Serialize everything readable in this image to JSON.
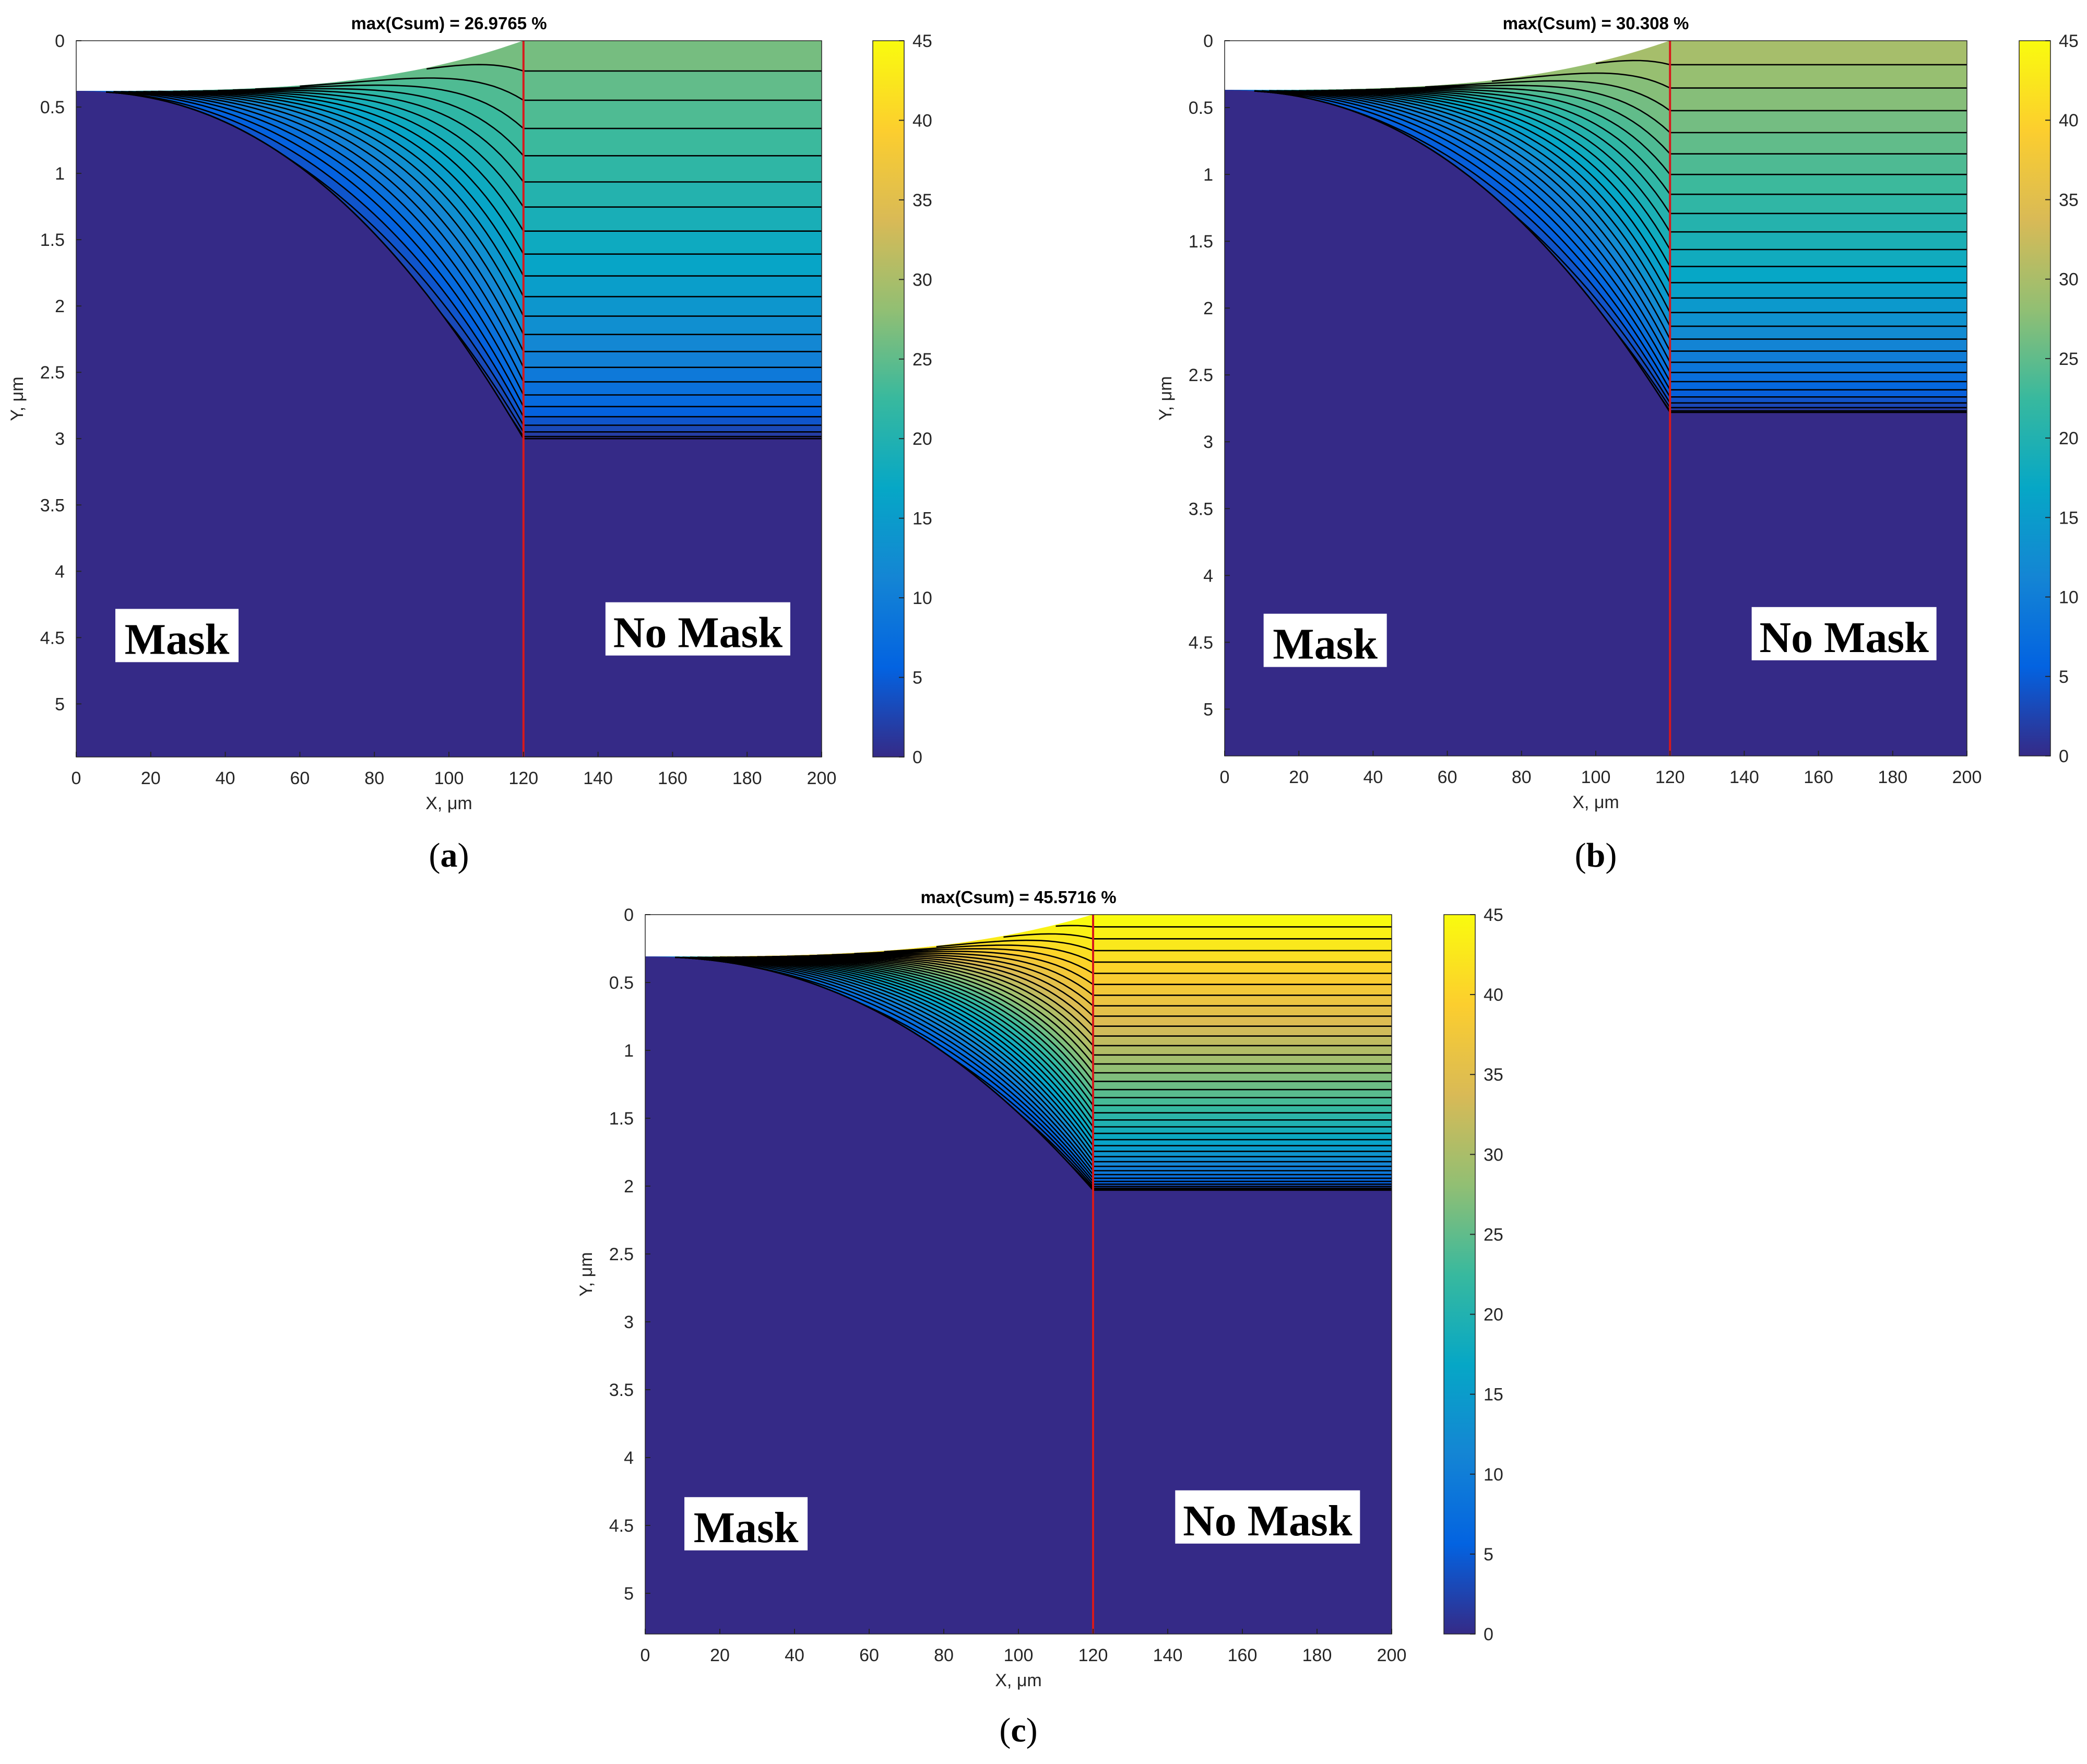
{
  "chart_data": [
    {
      "panel": "a",
      "type": "heatmap",
      "title": "max(Csum) = 26.9765 %",
      "max_value": 26.9765,
      "xlabel": "X, μm",
      "ylabel": "Y, μm",
      "xlim": [
        0,
        200
      ],
      "ylim": [
        0,
        5.4
      ],
      "xticks": [
        0,
        20,
        40,
        60,
        80,
        100,
        120,
        140,
        160,
        180,
        200
      ],
      "yticks": [
        0,
        0.5,
        1,
        1.5,
        2,
        2.5,
        3,
        3.5,
        4,
        4.5,
        5
      ],
      "ytick_labels": [
        "0",
        "0.5",
        "1",
        "1.5",
        "2",
        "2.5",
        "3",
        "3.5",
        "4",
        "4.5",
        "5"
      ],
      "colorbar": {
        "range": [
          0,
          45
        ],
        "ticks": [
          0,
          5,
          10,
          15,
          20,
          25,
          30,
          35,
          40,
          45
        ]
      },
      "mask_boundary_x": 120,
      "surface_depth_mask": 0.38,
      "diffusion_depth": 3.0,
      "contour_count": 22,
      "region_labels": {
        "left": "Mask",
        "right": "No Mask"
      },
      "caption": {
        "prefix": "(",
        "letter": "a",
        "suffix": ")"
      }
    },
    {
      "panel": "b",
      "type": "heatmap",
      "title": "max(Csum) = 30.308 %",
      "max_value": 30.308,
      "xlabel": "X, μm",
      "ylabel": "Y, μm",
      "xlim": [
        0,
        200
      ],
      "ylim": [
        0,
        5.35
      ],
      "xticks": [
        0,
        20,
        40,
        60,
        80,
        100,
        120,
        140,
        160,
        180,
        200
      ],
      "yticks": [
        0,
        0.5,
        1,
        1.5,
        2,
        2.5,
        3,
        3.5,
        4,
        4.5,
        5
      ],
      "ytick_labels": [
        "0",
        "0.5",
        "1",
        "1.5",
        "2",
        "2.5",
        "3",
        "3.5",
        "4",
        "4.5",
        "5"
      ],
      "colorbar": {
        "range": [
          0,
          45
        ],
        "ticks": [
          0,
          5,
          10,
          15,
          20,
          25,
          30,
          35,
          40,
          45
        ]
      },
      "mask_boundary_x": 120,
      "surface_depth_mask": 0.37,
      "diffusion_depth": 2.78,
      "contour_count": 26,
      "region_labels": {
        "left": "Mask",
        "right": "No Mask"
      },
      "caption": {
        "prefix": "(",
        "letter": "b",
        "suffix": ")"
      }
    },
    {
      "panel": "c",
      "type": "heatmap",
      "title": "max(Csum) = 45.5716 %",
      "max_value": 45.5716,
      "xlabel": "X, μm",
      "ylabel": "Y, μm",
      "xlim": [
        0,
        200
      ],
      "ylim": [
        0,
        5.3
      ],
      "xticks": [
        0,
        20,
        40,
        60,
        80,
        100,
        120,
        140,
        160,
        180,
        200
      ],
      "yticks": [
        0,
        0.5,
        1,
        1.5,
        2,
        2.5,
        3,
        3.5,
        4,
        4.5,
        5
      ],
      "ytick_labels": [
        "0",
        "0.5",
        "1",
        "1.5",
        "2",
        "2.5",
        "3",
        "3.5",
        "4",
        "4.5",
        "5"
      ],
      "colorbar": {
        "range": [
          0,
          45
        ],
        "ticks": [
          0,
          5,
          10,
          15,
          20,
          25,
          30,
          35,
          40,
          45
        ]
      },
      "mask_boundary_x": 120,
      "surface_depth_mask": 0.31,
      "diffusion_depth": 2.03,
      "contour_count": 38,
      "region_labels": {
        "left": "Mask",
        "right": "No Mask"
      },
      "caption": {
        "prefix": "(",
        "letter": "c",
        "suffix": ")"
      }
    }
  ],
  "colors": {
    "background_low": "#3a2fa6",
    "boundary_line": "#d7191c",
    "contour_line": "#000000",
    "axis_text": "#262626"
  },
  "parula_stops": [
    "#352a87",
    "#0363e1",
    "#1485d4",
    "#06a7c6",
    "#38b99e",
    "#92bf73",
    "#d9ba56",
    "#fcce2e",
    "#f9fb0e"
  ]
}
